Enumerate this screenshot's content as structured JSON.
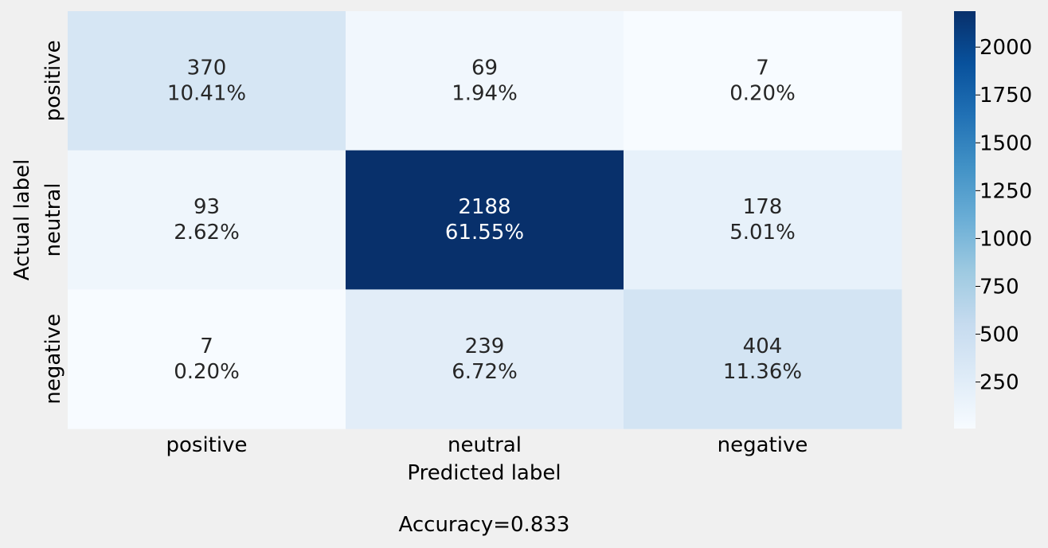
{
  "chart_data": {
    "type": "heatmap",
    "title": "",
    "xlabel": "Predicted label",
    "ylabel": "Actual label",
    "x_categories": [
      "positive",
      "neutral",
      "negative"
    ],
    "y_categories": [
      "positive",
      "neutral",
      "negative"
    ],
    "values": [
      [
        370,
        69,
        7
      ],
      [
        93,
        2188,
        178
      ],
      [
        7,
        239,
        404
      ]
    ],
    "percent_labels": [
      [
        "10.41%",
        "1.94%",
        "0.20%"
      ],
      [
        "2.62%",
        "61.55%",
        "5.01%"
      ],
      [
        "0.20%",
        "6.72%",
        "11.36%"
      ]
    ],
    "colormap": "Blues",
    "colormap_low": "#f7fbff",
    "colormap_high": "#08306b",
    "colorbar": {
      "min": 7,
      "max": 2188,
      "ticks": [
        250,
        500,
        750,
        1000,
        1250,
        1500,
        1750,
        2000
      ]
    },
    "grid": false,
    "footer": "Accuracy=0.833"
  }
}
